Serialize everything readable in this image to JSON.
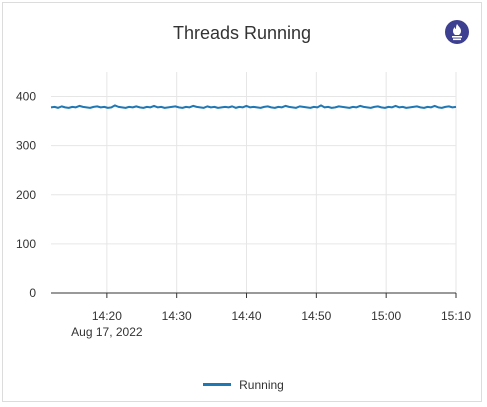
{
  "panel": {
    "title": "Threads Running",
    "logo_icon": "prometheus-icon"
  },
  "colors": {
    "series": "#1f78b4",
    "grid": "#e6e6e6",
    "axis": "#333333",
    "logo": "#3d3f90"
  },
  "chart_data": {
    "type": "line",
    "title": "Threads Running",
    "xlabel": "",
    "ylabel": "",
    "ylim": [
      0,
      450
    ],
    "yticks": [
      0,
      100,
      200,
      300,
      400
    ],
    "xlim": [
      "14:12",
      "15:10"
    ],
    "xticks": [
      "14:20",
      "14:30",
      "14:40",
      "14:50",
      "15:00",
      "15:10"
    ],
    "x_date_label": "Aug 17, 2022",
    "grid": true,
    "legend_position": "bottom-center",
    "series": [
      {
        "name": "Running",
        "x_start": "14:12",
        "x_end": "15:10",
        "values": [
          378,
          379,
          377,
          380,
          378,
          377,
          379,
          378,
          381,
          379,
          378,
          377,
          379,
          380,
          378,
          379,
          377,
          378,
          382,
          379,
          378,
          377,
          379,
          378,
          380,
          378,
          377,
          379,
          378,
          381,
          378,
          379,
          377,
          378,
          379,
          380,
          378,
          377,
          379,
          378,
          381,
          379,
          378,
          377,
          380,
          378,
          379,
          377,
          378,
          379,
          378,
          380,
          377,
          379,
          378,
          381,
          378,
          379,
          378,
          377,
          379,
          380,
          378,
          377,
          379,
          378,
          381,
          379,
          378,
          377,
          380,
          379,
          378,
          377,
          379,
          378,
          382,
          378,
          379,
          377,
          378,
          380,
          379,
          378,
          377,
          379,
          378,
          381,
          379,
          378,
          377,
          379,
          380,
          378,
          377,
          379,
          378,
          381,
          378,
          379,
          377,
          378,
          379,
          380,
          378,
          377,
          379,
          378,
          381,
          378,
          377,
          379,
          380,
          378,
          379
        ]
      }
    ]
  }
}
